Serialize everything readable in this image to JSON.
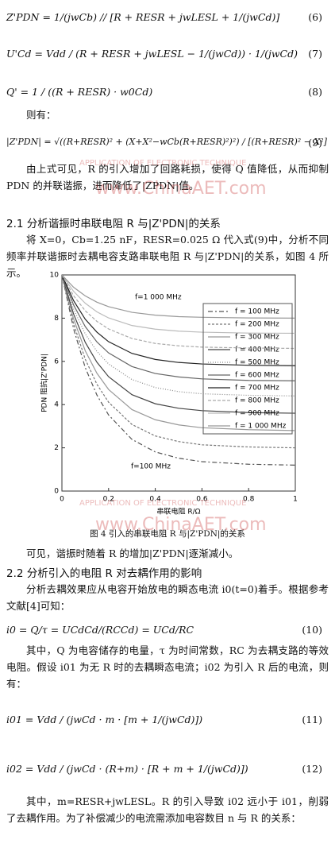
{
  "equations": [
    {
      "text": "Z'PDN = 1/(jwCb) // [R + RESR + jwLESL + 1/(jwCd)]",
      "number": "(6)"
    },
    {
      "text": "U'Cd = Vdd / (R + RESR + jwLESL − 1/(jwCd)) · 1/(jwCd)",
      "number": "(7)"
    },
    {
      "text": "Q' = 1 / ((R + RESR) · w0Cd)",
      "number": "(8)"
    },
    {
      "text": "|Z'PDN| = √((R+RESR)² + (X+X²−wCb(R+RESR)²)²) / [(R+RESR)² − X²]",
      "number": "(9)"
    },
    {
      "text": "i0 = Q/τ = UCdCd/(RCCd) = UCd/RC",
      "number": "(10)"
    },
    {
      "text": "i01 = Vdd / (jwCd · m · [m + 1/(jwCd)])",
      "number": "(11)"
    },
    {
      "text": "i02 = Vdd / (jwCd · (R+m) · [R + m + 1/(jwCd)])",
      "number": "(12)"
    }
  ],
  "text": {
    "then": "则有：",
    "p1": "由上式可见，R 的引入增加了回路耗损，使得 Q 值降低，从而抑制 PDN 的并联谐振，进而降低了|ZPDN|值。",
    "h1": "2.1 分析谐振时串联电阻 R 与|Z'PDN|的关系",
    "p2": "将 X=0，Cb=1.25 nF，RESR=0.025 Ω 代入式(9)中，分析不同频率并联谐振时去耦电容支路串联电阻 R 与|Z'PDN|的关系，如图 4 所示。",
    "caption": "图 4 引入的串联电阻 R 与|Z'PDN|的关系",
    "p3": "可见，谐振时随着 R 的增加|Z'PDN|逐渐减小。",
    "h2": "2.2 分析引入的电阻 R 对去耦作用的影响",
    "p4": "分析去耦效果应从电容开始放电的瞬态电流 i0(t=0)着手。根据参考文献[4]可知：",
    "p5": "其中，Q 为电容储存的电量，τ 为时间常数，RC 为去耦支路的等效电阻。假设 i01 为无 R 时的去耦瞬态电流；i02 为引入 R 后的电流，则有：",
    "p6": "其中，m=RESR+jwLESL。R 的引入导致 i02 远小于 i01，削弱了去耦作用。为了补偿减少的电流需添加电容数目 n 与 R 的关系："
  },
  "watermarks": [
    "APPLICATION OF ELECTRONIC TECHNIQUE",
    "www.ChinaAET.com",
    "APPLICATION OF ELECTRONIC TECHNIQUE",
    "www.ChinaAET.com"
  ],
  "figure": {
    "type": "line",
    "xlabel": "串联电阻 R/Ω",
    "ylabel": "PDN 阻抗|Z'PDN|",
    "annotations": [
      "f=1 000 MHz",
      "f=100 MHz"
    ],
    "x": [
      0,
      0.05,
      0.1,
      0.15,
      0.2,
      0.3,
      0.4,
      0.5,
      0.6,
      0.8,
      1.0
    ],
    "xlim": [
      0,
      1
    ],
    "xticks": [
      0,
      0.2,
      0.4,
      0.6,
      0.8,
      1
    ],
    "ylim": [
      0,
      10
    ],
    "yticks": [
      0,
      2,
      4,
      6,
      8,
      10
    ],
    "series": [
      {
        "name": "f = 100 MHz",
        "color": "#555555",
        "values": [
          10,
          7.51,
          5.71,
          4.44,
          3.52,
          2.39,
          1.81,
          1.52,
          1.36,
          1.24,
          1.2
        ]
      },
      {
        "name": "f = 200 MHz",
        "color": "#777777",
        "values": [
          10,
          7.74,
          6.1,
          4.94,
          4.11,
          3.08,
          2.55,
          2.29,
          2.14,
          2.04,
          2.0
        ]
      },
      {
        "name": "f = 300 MHz",
        "color": "#999999",
        "values": [
          10,
          7.96,
          6.49,
          5.45,
          4.7,
          3.77,
          3.3,
          3.06,
          2.93,
          2.84,
          2.8
        ]
      },
      {
        "name": "f = 400 MHz",
        "color": "#444444",
        "values": [
          10,
          8.19,
          6.88,
          5.96,
          5.29,
          4.46,
          4.04,
          3.83,
          3.72,
          3.63,
          3.6
        ]
      },
      {
        "name": "f = 500 MHz",
        "color": "#888888",
        "values": [
          10,
          8.42,
          7.27,
          6.46,
          5.88,
          5.16,
          4.79,
          4.6,
          4.5,
          4.43,
          4.4
        ]
      },
      {
        "name": "f = 600 MHz",
        "color": "#666666",
        "values": [
          10,
          8.61,
          7.61,
          6.9,
          6.39,
          5.76,
          5.44,
          5.28,
          5.19,
          5.12,
          5.1
        ]
      },
      {
        "name": "f = 700 MHz",
        "color": "#222222",
        "values": [
          10,
          8.81,
          7.95,
          7.35,
          6.91,
          6.37,
          6.09,
          5.95,
          5.88,
          5.82,
          5.8
        ]
      },
      {
        "name": "f = 800 MHz",
        "color": "#aaaaaa",
        "values": [
          10,
          9.04,
          8.34,
          7.85,
          7.5,
          7.06,
          6.83,
          6.72,
          6.66,
          6.62,
          6.6
        ]
      },
      {
        "name": "f = 900 MHz",
        "color": "#bbbbbb",
        "values": [
          10,
          9.24,
          8.69,
          8.29,
          8.01,
          7.66,
          7.49,
          7.4,
          7.35,
          7.31,
          7.3
        ]
      },
      {
        "name": "f = 1 000 MHz",
        "color": "#999999",
        "values": [
          10,
          9.43,
          9.03,
          8.74,
          8.53,
          8.27,
          8.14,
          8.07,
          8.04,
          8.01,
          8.0
        ]
      }
    ]
  }
}
